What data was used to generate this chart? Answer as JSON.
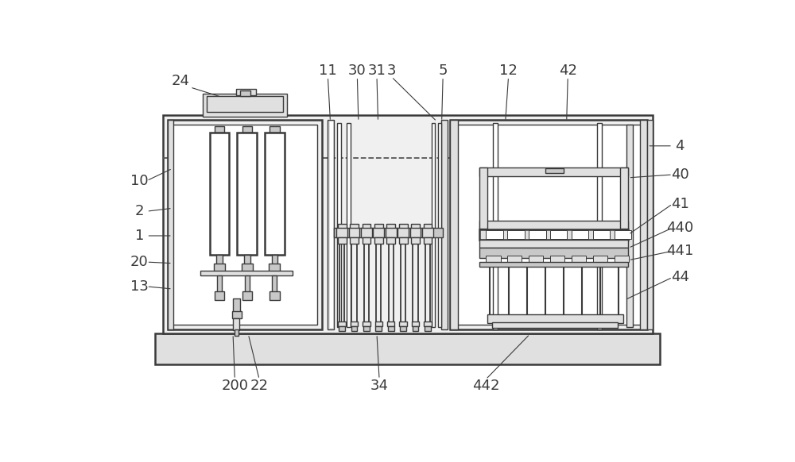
{
  "bg": "#ffffff",
  "lc": "#3a3a3a",
  "lw": 1.0,
  "tlw": 1.8
}
